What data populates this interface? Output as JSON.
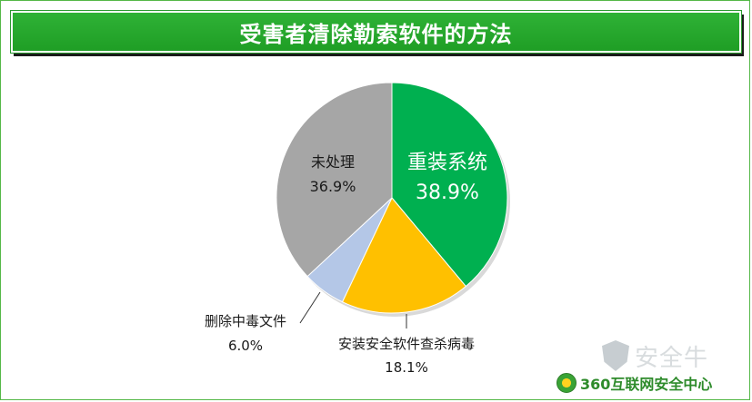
{
  "title": "受害者清除勒索软件的方法",
  "chart_data": {
    "type": "pie",
    "start_angle_deg": 0,
    "direction": "clockwise",
    "slices": [
      {
        "name": "重装系统",
        "value": 38.9,
        "label": "38.9%",
        "color": "#00b050"
      },
      {
        "name": "安装安全软件查杀病毒",
        "value": 18.1,
        "label": "18.1%",
        "color": "#ffc000"
      },
      {
        "name": "删除中毒文件",
        "value": 6.0,
        "label": "6.0%",
        "color": "#b4c7e7"
      },
      {
        "name": "未处理",
        "value": 36.9,
        "label": "36.9%",
        "color": "#a6a6a6"
      }
    ],
    "legend": "none"
  },
  "watermark": {
    "text": "安全牛",
    "icon": "shield-icon"
  },
  "logo": {
    "text": "360互联网安全中心",
    "icon": "360-logo-icon"
  }
}
